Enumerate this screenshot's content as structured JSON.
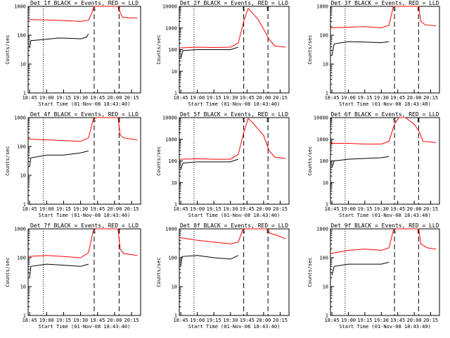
{
  "figure": {
    "date_label": "01-Nov-08 18:43:40",
    "xlabel": "Start Time (01-Nov-08 18:43:40)",
    "ylabel": "Counts/sec",
    "x_tick_labels": [
      "18:45",
      "19:00",
      "19:15",
      "19:30",
      "19:45",
      "20:00",
      "20:15"
    ],
    "y_tick_labels": [
      "1",
      "10",
      "100",
      "1000",
      "10000"
    ],
    "colors": {
      "events": "#000000",
      "lld": "#ff0000",
      "axis": "#000000"
    },
    "markers": [
      "S",
      "E"
    ]
  },
  "chart_data": [
    {
      "type": "line",
      "title": "Det 1f BLACK = Events, RED = LLD",
      "x": [
        "18:43:40",
        "18:45",
        "19:00",
        "19:15",
        "19:30",
        "19:37",
        "19:41",
        "19:45",
        "19:55",
        "20:00",
        "20:03",
        "20:05",
        "20:10",
        "20:15",
        "20:20"
      ],
      "ylim": [
        1,
        1000
      ],
      "yscale": "log",
      "series": [
        {
          "name": "BLACK = Events",
          "x": [
            "18:45",
            "18:46",
            "19:00",
            "19:10",
            "19:20",
            "19:30",
            "19:35",
            "19:37"
          ],
          "values": [
            35,
            65,
            72,
            80,
            78,
            75,
            85,
            110
          ]
        },
        {
          "name": "RED = LLD",
          "x": [
            "18:43:40",
            "19:00",
            "19:15",
            "19:30",
            "19:37",
            "19:40",
            "19:42",
            "20:03",
            "20:05",
            "20:07",
            "20:12",
            "20:20"
          ],
          "values": [
            350,
            340,
            320,
            300,
            330,
            600,
            1000,
            1000,
            600,
            420,
            400,
            390
          ]
        }
      ],
      "vlines": [
        {
          "x": "18:57",
          "style": "dotted"
        },
        {
          "x": "19:42",
          "style": "dashed"
        },
        {
          "x": "20:04",
          "style": "dashed"
        }
      ]
    },
    {
      "type": "line",
      "title": "Det 2f BLACK = Events, RED = LLD",
      "ylim": [
        1,
        10000
      ],
      "yscale": "log",
      "series": [
        {
          "name": "BLACK = Events",
          "x": [
            "18:45",
            "18:47",
            "19:00",
            "19:15",
            "19:30",
            "19:37"
          ],
          "values": [
            40,
            90,
            100,
            100,
            100,
            130
          ]
        },
        {
          "name": "RED = LLD",
          "x": [
            "18:43:40",
            "19:00",
            "19:15",
            "19:30",
            "19:37",
            "19:42",
            "19:46",
            "19:50",
            "19:55",
            "20:00",
            "20:05",
            "20:10",
            "20:20"
          ],
          "values": [
            120,
            130,
            125,
            130,
            200,
            2000,
            8000,
            5000,
            2500,
            900,
            300,
            150,
            130
          ]
        }
      ],
      "vlines": [
        {
          "x": "18:57",
          "style": "dotted"
        },
        {
          "x": "19:42",
          "style": "dashed"
        },
        {
          "x": "20:04",
          "style": "dashed"
        }
      ]
    },
    {
      "type": "line",
      "title": "Det 3f BLACK = Events, RED = LLD",
      "ylim": [
        1,
        1000
      ],
      "yscale": "log",
      "series": [
        {
          "name": "BLACK = Events",
          "x": [
            "18:45",
            "18:47",
            "19:00",
            "19:15",
            "19:30",
            "19:37"
          ],
          "values": [
            20,
            50,
            60,
            58,
            55,
            60
          ]
        },
        {
          "name": "RED = LLD",
          "x": [
            "18:43:40",
            "19:00",
            "19:15",
            "19:30",
            "19:37",
            "19:41",
            "19:43",
            "20:04",
            "20:06",
            "20:10",
            "20:20"
          ],
          "values": [
            180,
            190,
            200,
            180,
            220,
            1000,
            1000,
            1000,
            300,
            230,
            210
          ]
        }
      ],
      "vlines": [
        {
          "x": "18:57",
          "style": "dotted"
        },
        {
          "x": "19:42",
          "style": "dashed"
        },
        {
          "x": "20:04",
          "style": "dashed"
        }
      ]
    },
    {
      "type": "line",
      "title": "Det 4f BLACK = Events, RED = LLD",
      "ylim": [
        1,
        1000
      ],
      "yscale": "log",
      "series": [
        {
          "name": "BLACK = Events",
          "x": [
            "18:45",
            "18:46",
            "19:00",
            "19:15",
            "19:30",
            "19:37"
          ],
          "values": [
            20,
            40,
            50,
            50,
            60,
            70
          ]
        },
        {
          "name": "RED = LLD",
          "x": [
            "18:43:40",
            "19:00",
            "19:15",
            "19:30",
            "19:37",
            "19:41",
            "19:43",
            "20:03",
            "20:05",
            "20:08",
            "20:20"
          ],
          "values": [
            180,
            170,
            160,
            150,
            200,
            800,
            1000,
            1000,
            250,
            200,
            170
          ]
        }
      ],
      "vlines": [
        {
          "x": "18:57",
          "style": "dotted"
        },
        {
          "x": "19:42",
          "style": "dashed"
        },
        {
          "x": "20:04",
          "style": "dashed"
        }
      ]
    },
    {
      "type": "line",
      "title": "Det 5f BLACK = Events, RED = LLD",
      "ylim": [
        1,
        10000
      ],
      "yscale": "log",
      "series": [
        {
          "name": "BLACK = Events",
          "x": [
            "18:45",
            "18:47",
            "19:00",
            "19:15",
            "19:30",
            "19:37"
          ],
          "values": [
            40,
            80,
            90,
            90,
            90,
            120
          ]
        },
        {
          "name": "RED = LLD",
          "x": [
            "18:43:40",
            "19:00",
            "19:15",
            "19:30",
            "19:37",
            "19:42",
            "19:46",
            "19:50",
            "19:55",
            "20:00",
            "20:05",
            "20:10",
            "20:20"
          ],
          "values": [
            120,
            125,
            120,
            120,
            200,
            2000,
            9000,
            6000,
            3000,
            1500,
            300,
            150,
            130
          ]
        }
      ],
      "vlines": [
        {
          "x": "18:57",
          "style": "dotted"
        },
        {
          "x": "19:42",
          "style": "dashed"
        },
        {
          "x": "20:04",
          "style": "dashed"
        }
      ]
    },
    {
      "type": "line",
      "title": "Det 6f BLACK = Events, RED = LLD",
      "ylim": [
        1,
        10000
      ],
      "yscale": "log",
      "series": [
        {
          "name": "BLACK = Events",
          "x": [
            "18:45",
            "18:47",
            "19:00",
            "19:15",
            "19:30",
            "19:37"
          ],
          "values": [
            50,
            100,
            120,
            130,
            140,
            160
          ]
        },
        {
          "name": "RED = LLD",
          "x": [
            "18:43:40",
            "19:00",
            "19:15",
            "19:30",
            "19:37",
            "19:42",
            "19:46",
            "19:52",
            "20:00",
            "20:04",
            "20:08",
            "20:20"
          ],
          "values": [
            650,
            650,
            600,
            600,
            800,
            5000,
            10000,
            10000,
            5000,
            2500,
            800,
            700
          ]
        }
      ],
      "vlines": [
        {
          "x": "18:57",
          "style": "dotted"
        },
        {
          "x": "19:42",
          "style": "dashed"
        },
        {
          "x": "20:04",
          "style": "dashed"
        }
      ]
    },
    {
      "type": "line",
      "title": "Det 7f BLACK = Events, RED = LLD",
      "ylim": [
        1,
        1000
      ],
      "yscale": "log",
      "series": [
        {
          "name": "BLACK = Events",
          "x": [
            "18:45",
            "18:46",
            "19:00",
            "19:15",
            "19:30",
            "19:37"
          ],
          "values": [
            20,
            50,
            60,
            55,
            50,
            60
          ]
        },
        {
          "name": "RED = LLD",
          "x": [
            "18:43:40",
            "19:00",
            "19:15",
            "19:30",
            "19:37",
            "19:41",
            "19:43",
            "20:03",
            "20:05",
            "20:08",
            "20:20"
          ],
          "values": [
            110,
            120,
            110,
            100,
            150,
            800,
            1000,
            1000,
            200,
            140,
            120
          ]
        }
      ],
      "vlines": [
        {
          "x": "18:57",
          "style": "dotted"
        },
        {
          "x": "19:42",
          "style": "dashed"
        },
        {
          "x": "20:04",
          "style": "dashed"
        }
      ]
    },
    {
      "type": "line",
      "title": "Det 8f BLACK = Events, RED = LLD",
      "ylim": [
        1,
        1000
      ],
      "yscale": "log",
      "series": [
        {
          "name": "BLACK = Events",
          "x": [
            "18:45",
            "18:46",
            "19:00",
            "19:15",
            "19:30",
            "19:37"
          ],
          "values": [
            50,
            110,
            120,
            100,
            90,
            120
          ]
        },
        {
          "name": "RED = LLD",
          "x": [
            "18:43:40",
            "19:00",
            "19:15",
            "19:30",
            "19:37",
            "19:41",
            "19:43",
            "20:03",
            "20:06",
            "20:12",
            "20:20"
          ],
          "values": [
            500,
            400,
            350,
            300,
            350,
            900,
            1000,
            1000,
            700,
            600,
            450
          ]
        }
      ],
      "vlines": [
        {
          "x": "18:57",
          "style": "dotted"
        },
        {
          "x": "19:42",
          "style": "dashed"
        },
        {
          "x": "20:04",
          "style": "dashed"
        }
      ]
    },
    {
      "type": "line",
      "title": "Det 9f BLACK = Events, RED = LLD",
      "ylim": [
        1,
        1000
      ],
      "yscale": "log",
      "series": [
        {
          "name": "BLACK = Events",
          "x": [
            "18:45",
            "18:47",
            "19:00",
            "19:15",
            "19:30",
            "19:37"
          ],
          "values": [
            25,
            50,
            60,
            60,
            60,
            70
          ]
        },
        {
          "name": "RED = LLD",
          "x": [
            "18:43:40",
            "19:00",
            "19:15",
            "19:30",
            "19:37",
            "19:41",
            "19:43",
            "20:04",
            "20:06",
            "20:12",
            "20:20"
          ],
          "values": [
            140,
            180,
            200,
            180,
            220,
            900,
            1000,
            1000,
            300,
            220,
            200
          ]
        }
      ],
      "vlines": [
        {
          "x": "18:57",
          "style": "dotted"
        },
        {
          "x": "19:42",
          "style": "dashed"
        },
        {
          "x": "20:04",
          "style": "dashed"
        }
      ]
    }
  ]
}
